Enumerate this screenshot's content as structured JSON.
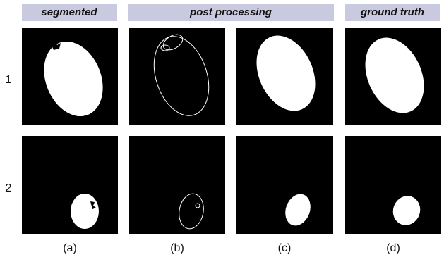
{
  "headers": [
    "segmented",
    "post processing",
    "ground truth"
  ],
  "rows": [
    "1",
    "2"
  ],
  "columns": [
    "(a)",
    "(b)",
    "(c)",
    "(d)"
  ]
}
